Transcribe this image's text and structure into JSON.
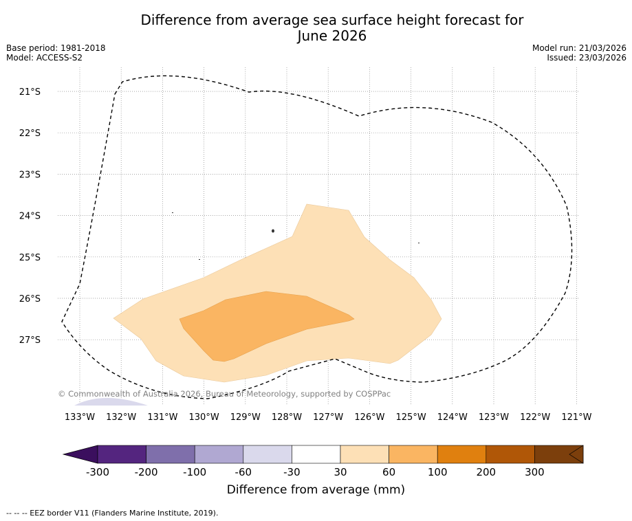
{
  "title_line1": "Difference from average sea surface height forecast for",
  "title_line2": "June 2026",
  "base_period": "Base period: 1981-2018",
  "model": "Model: ACCESS-S2",
  "model_run": "Model run: 21/03/2026",
  "issued": "Issued: 23/03/2026",
  "copyright": "© Commonwealth of Australia 2026, Bureau of Meteorology, supported by COSPPac",
  "lat_labels": [
    "21°S",
    "22°S",
    "23°S",
    "24°S",
    "25°S",
    "26°S",
    "27°S"
  ],
  "lon_labels": [
    "133°W",
    "132°W",
    "131°W",
    "130°W",
    "129°W",
    "128°W",
    "127°W",
    "126°W",
    "125°W",
    "124°W",
    "123°W",
    "122°W",
    "121°W"
  ],
  "colorbar": {
    "title": "Difference from average (mm)",
    "ticks": [
      "-300",
      "-200",
      "-100",
      "-60",
      "-30",
      "30",
      "60",
      "100",
      "200",
      "300"
    ],
    "colors": [
      "#3b0f5e",
      "#54257f",
      "#7f6fab",
      "#b0a8d2",
      "#dad9ec",
      "#ffffff",
      "#fde0b6",
      "#fab562",
      "#e0800f",
      "#b05707",
      "#7c3f0c"
    ]
  },
  "legend_note": "-- -- -- EEZ border V11 (Flanders Marine Institute, 2019).",
  "fill_colors": {
    "band_30_60": "#fde0b6",
    "band_60_100": "#fab562",
    "band_neg": "#dad9ec"
  }
}
